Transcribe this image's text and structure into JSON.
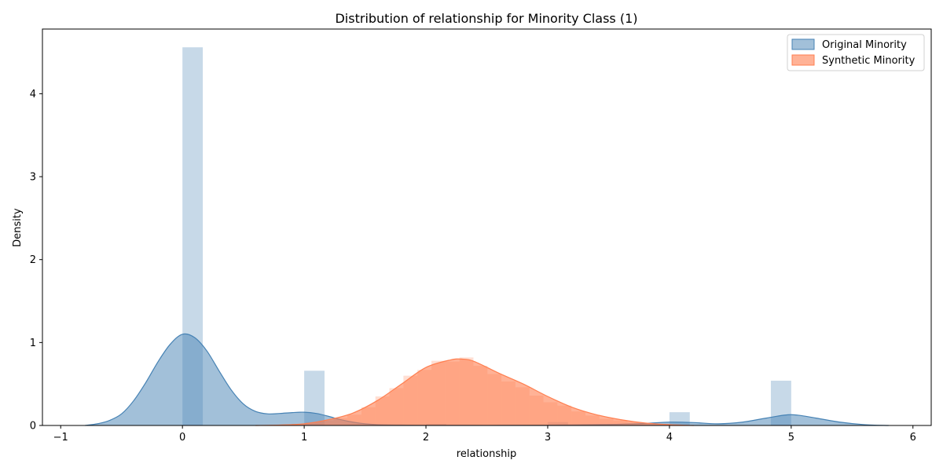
{
  "chart_data": {
    "type": "area",
    "title": "Distribution of relationship for Minority Class (1)",
    "xlabel": "relationship",
    "ylabel": "Density",
    "xlim": [
      -1.15,
      6.15
    ],
    "ylim": [
      0,
      4.78
    ],
    "x_ticks": [
      -1,
      0,
      1,
      2,
      3,
      4,
      5,
      6
    ],
    "y_ticks": [
      0,
      1,
      2,
      3,
      4
    ],
    "grid": false,
    "legend_position": "top-right",
    "series": [
      {
        "name": "Original Minority",
        "color": "#4682b4",
        "histogram": {
          "bins": [
            {
              "x0": 0.0,
              "x1": 0.167,
              "density": 4.56
            },
            {
              "x0": 1.0,
              "x1": 1.167,
              "density": 0.66
            },
            {
              "x0": 2.0,
              "x1": 2.167,
              "density": 0.02
            },
            {
              "x0": 3.0,
              "x1": 3.167,
              "density": 0.04
            },
            {
              "x0": 4.0,
              "x1": 4.167,
              "density": 0.16
            },
            {
              "x0": 4.833,
              "x1": 5.0,
              "density": 0.54
            }
          ]
        },
        "kde": {
          "x": [
            -0.8,
            -0.7,
            -0.6,
            -0.5,
            -0.4,
            -0.3,
            -0.2,
            -0.1,
            0.0,
            0.1,
            0.2,
            0.3,
            0.4,
            0.5,
            0.6,
            0.7,
            0.8,
            0.9,
            1.0,
            1.1,
            1.2,
            1.3,
            1.4,
            1.5,
            1.6,
            1.8,
            2.0,
            2.5,
            3.0,
            3.5,
            3.8,
            4.0,
            4.2,
            4.4,
            4.6,
            4.8,
            5.0,
            5.2,
            5.4,
            5.6,
            5.8
          ],
          "y": [
            0.0,
            0.02,
            0.06,
            0.14,
            0.3,
            0.52,
            0.77,
            0.98,
            1.1,
            1.06,
            0.9,
            0.66,
            0.43,
            0.26,
            0.17,
            0.14,
            0.145,
            0.155,
            0.16,
            0.145,
            0.11,
            0.07,
            0.04,
            0.02,
            0.01,
            0.005,
            0.003,
            0.002,
            0.004,
            0.012,
            0.025,
            0.04,
            0.035,
            0.02,
            0.04,
            0.09,
            0.13,
            0.09,
            0.04,
            0.01,
            0.0
          ]
        }
      },
      {
        "name": "Synthetic Minority",
        "color": "#ff7f50",
        "histogram": {
          "bins": [
            {
              "x0": 0.78,
              "x1": 0.895,
              "density": 0.01
            },
            {
              "x0": 0.895,
              "x1": 1.01,
              "density": 0.02
            },
            {
              "x0": 1.01,
              "x1": 1.125,
              "density": 0.04
            },
            {
              "x0": 1.125,
              "x1": 1.24,
              "density": 0.06
            },
            {
              "x0": 1.24,
              "x1": 1.355,
              "density": 0.09
            },
            {
              "x0": 1.355,
              "x1": 1.47,
              "density": 0.13
            },
            {
              "x0": 1.47,
              "x1": 1.585,
              "density": 0.22
            },
            {
              "x0": 1.585,
              "x1": 1.7,
              "density": 0.35
            },
            {
              "x0": 1.7,
              "x1": 1.815,
              "density": 0.45
            },
            {
              "x0": 1.815,
              "x1": 1.93,
              "density": 0.6
            },
            {
              "x0": 1.93,
              "x1": 2.045,
              "density": 0.67
            },
            {
              "x0": 2.045,
              "x1": 2.16,
              "density": 0.78
            },
            {
              "x0": 2.16,
              "x1": 2.275,
              "density": 0.77
            },
            {
              "x0": 2.275,
              "x1": 2.39,
              "density": 0.82
            },
            {
              "x0": 2.39,
              "x1": 2.505,
              "density": 0.72
            },
            {
              "x0": 2.505,
              "x1": 2.62,
              "density": 0.62
            },
            {
              "x0": 2.62,
              "x1": 2.735,
              "density": 0.53
            },
            {
              "x0": 2.735,
              "x1": 2.85,
              "density": 0.46
            },
            {
              "x0": 2.85,
              "x1": 2.965,
              "density": 0.36
            },
            {
              "x0": 2.965,
              "x1": 3.08,
              "density": 0.28
            },
            {
              "x0": 3.08,
              "x1": 3.195,
              "density": 0.24
            },
            {
              "x0": 3.195,
              "x1": 3.31,
              "density": 0.17
            },
            {
              "x0": 3.31,
              "x1": 3.425,
              "density": 0.12
            },
            {
              "x0": 3.425,
              "x1": 3.54,
              "density": 0.08
            },
            {
              "x0": 3.54,
              "x1": 3.655,
              "density": 0.06
            },
            {
              "x0": 3.655,
              "x1": 3.77,
              "density": 0.04
            },
            {
              "x0": 3.77,
              "x1": 3.885,
              "density": 0.03
            },
            {
              "x0": 3.885,
              "x1": 4.0,
              "density": 0.02
            }
          ]
        },
        "kde": {
          "x": [
            0.6,
            0.8,
            1.0,
            1.2,
            1.4,
            1.6,
            1.8,
            2.0,
            2.2,
            2.3,
            2.4,
            2.6,
            2.8,
            3.0,
            3.2,
            3.4,
            3.6,
            3.8,
            4.0,
            4.2
          ],
          "y": [
            0.0,
            0.005,
            0.02,
            0.07,
            0.15,
            0.3,
            0.5,
            0.7,
            0.79,
            0.8,
            0.77,
            0.63,
            0.5,
            0.35,
            0.22,
            0.13,
            0.07,
            0.03,
            0.01,
            0.0
          ]
        }
      }
    ]
  }
}
